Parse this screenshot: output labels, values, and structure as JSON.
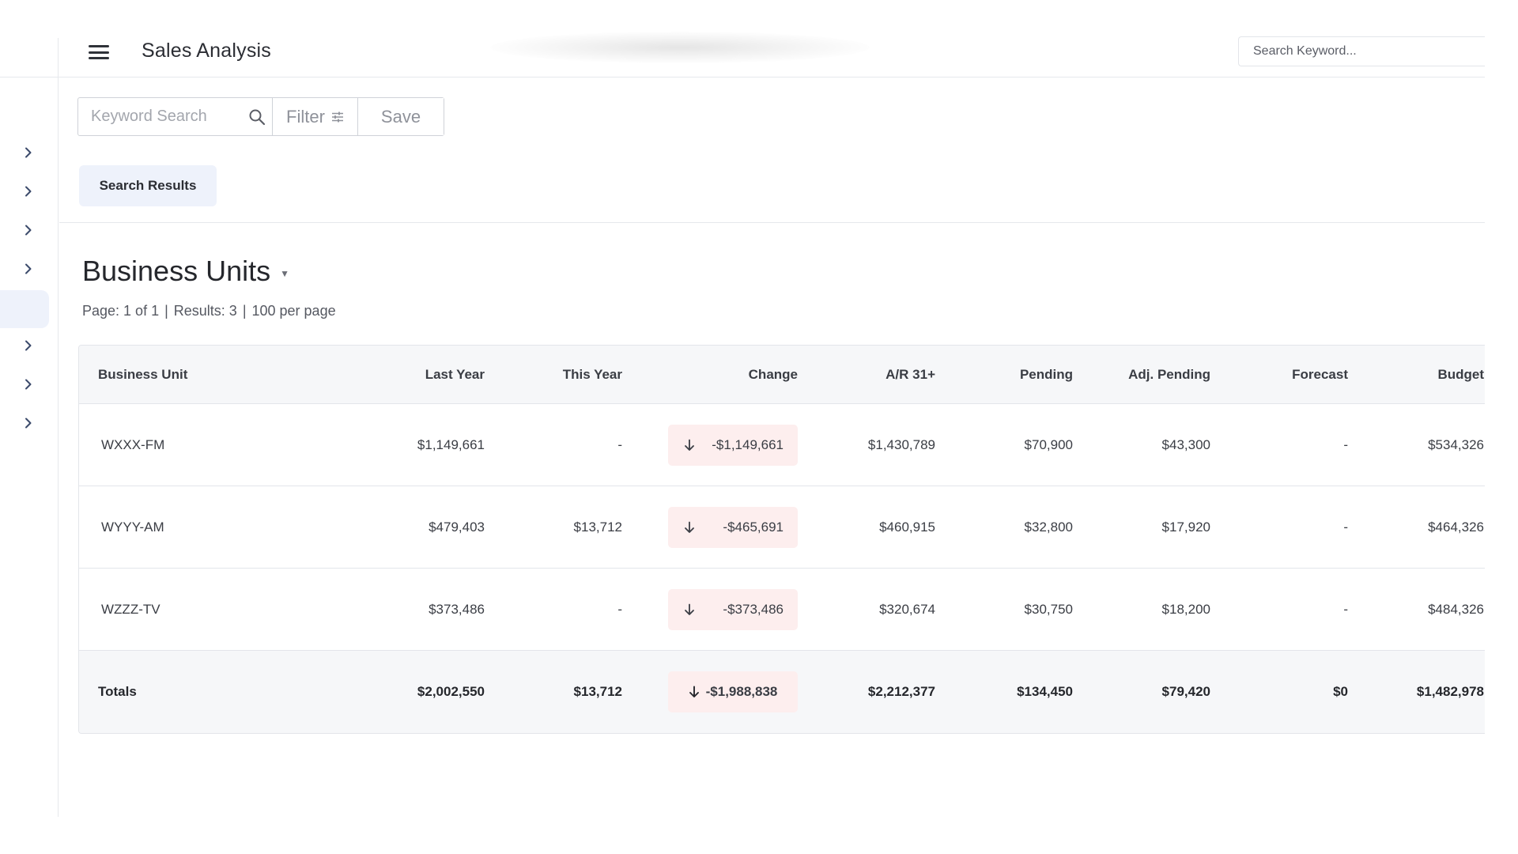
{
  "header": {
    "title": "Sales Analysis",
    "search_placeholder": "Search Keyword..."
  },
  "toolbar": {
    "keyword_placeholder": "Keyword Search",
    "filter_label": "Filter",
    "save_label": "Save"
  },
  "results_chip": "Search Results",
  "section": {
    "title": "Business Units",
    "page_info": "Page: 1 of 1",
    "results_info": "Results: 3",
    "per_page_info": "100 per page",
    "separator": "|"
  },
  "table": {
    "columns": [
      "Business Unit",
      "Last Year",
      "This Year",
      "Change",
      "A/R 31+",
      "Pending",
      "Adj. Pending",
      "Forecast",
      "Budget"
    ],
    "rows": [
      {
        "unit": "WXXX-FM",
        "last_year": "$1,149,661",
        "this_year": "-",
        "change": "-$1,149,661",
        "ar": "$1,430,789",
        "pending": "$70,900",
        "adj_pending": "$43,300",
        "forecast": "-",
        "budget": "$534,326"
      },
      {
        "unit": "WYYY-AM",
        "last_year": "$479,403",
        "this_year": "$13,712",
        "change": "-$465,691",
        "ar": "$460,915",
        "pending": "$32,800",
        "adj_pending": "$17,920",
        "forecast": "-",
        "budget": "$464,326"
      },
      {
        "unit": "WZZZ-TV",
        "last_year": "$373,486",
        "this_year": "-",
        "change": "-$373,486",
        "ar": "$320,674",
        "pending": "$30,750",
        "adj_pending": "$18,200",
        "forecast": "-",
        "budget": "$484,326"
      }
    ],
    "totals": {
      "unit": "Totals",
      "last_year": "$2,002,550",
      "this_year": "$13,712",
      "change": "-$1,988,838",
      "ar": "$2,212,377",
      "pending": "$134,450",
      "adj_pending": "$79,420",
      "forecast": "$0",
      "budget": "$1,482,978"
    }
  },
  "icons": {
    "menu": "hamburger-menu-icon",
    "search": "search-icon",
    "filter": "sliders-icon",
    "rail": "chevron-right-icon",
    "change": "arrow-down-icon"
  },
  "colors": {
    "change_bg": "#fdeeee",
    "chip_bg": "#eef2fb",
    "header_row_bg": "#f6f7f9"
  }
}
